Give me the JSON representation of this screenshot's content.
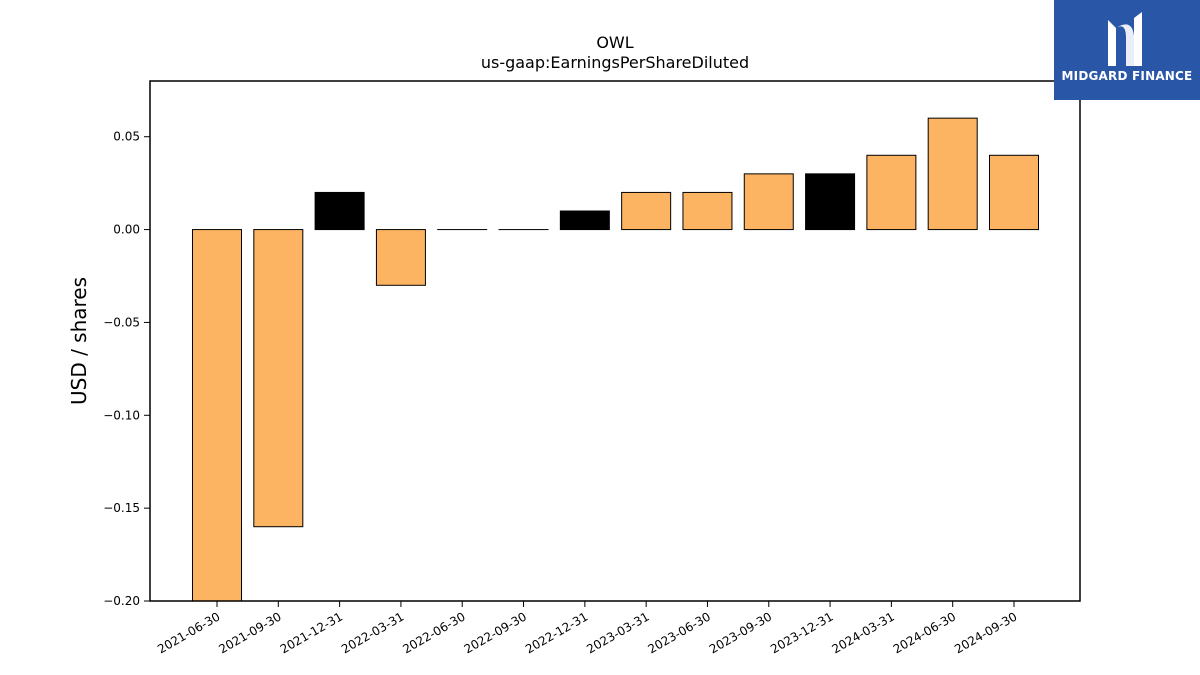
{
  "brand": {
    "name": "MIDGARD FINANCE",
    "background_color": "#2a56a8"
  },
  "chart_data": {
    "type": "bar",
    "title": "OWL",
    "subtitle": "us-gaap:EarningsPerShareDiluted",
    "xlabel": "",
    "ylabel": "USD / shares",
    "ylim": [
      -0.2,
      0.08
    ],
    "yticks": [
      "0.05",
      "0.00",
      "−0.05",
      "−0.10",
      "−0.15",
      "−0.20"
    ],
    "ytick_values": [
      0.05,
      0.0,
      -0.05,
      -0.1,
      -0.15,
      -0.2
    ],
    "grid": false,
    "legend": "none",
    "categories": [
      "2021-06-30",
      "2021-09-30",
      "2021-12-31",
      "2022-03-31",
      "2022-06-30",
      "2022-09-30",
      "2022-12-31",
      "2023-03-31",
      "2023-06-30",
      "2023-09-30",
      "2023-12-31",
      "2024-03-31",
      "2024-06-30",
      "2024-09-30"
    ],
    "values": [
      -0.2,
      -0.16,
      0.02,
      -0.03,
      0.0,
      0.0,
      0.01,
      0.02,
      0.02,
      0.03,
      0.03,
      0.04,
      0.06,
      0.04
    ],
    "bar_colors": [
      "#fdb462",
      "#fdb462",
      "#000000",
      "#fdb462",
      "#fdb462",
      "#fdb462",
      "#000000",
      "#fdb462",
      "#fdb462",
      "#fdb462",
      "#000000",
      "#fdb462",
      "#fdb462",
      "#fdb462"
    ]
  }
}
